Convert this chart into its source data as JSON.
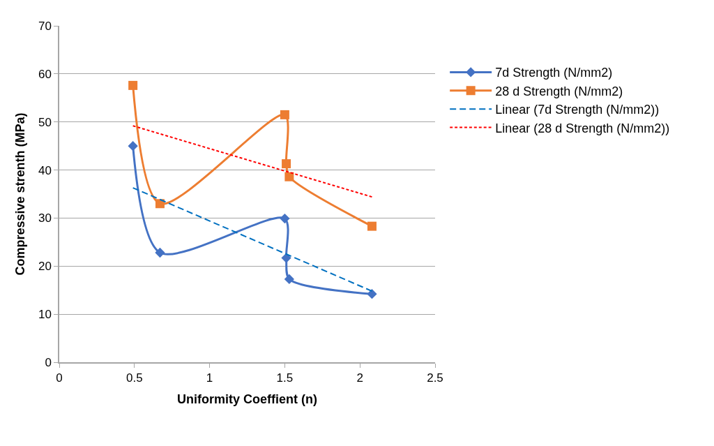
{
  "chart_data": {
    "type": "line",
    "xlabel": "Uniformity Coeffient (n)",
    "ylabel": "Compressive strenth (MPa)",
    "xlim": [
      0,
      2.5
    ],
    "xticks": [
      0,
      0.5,
      1,
      1.5,
      2,
      2.5
    ],
    "ylim": [
      0,
      70
    ],
    "yticks": [
      0,
      10,
      20,
      30,
      40,
      50,
      60,
      70
    ],
    "grid": "y",
    "legend": "right",
    "series": [
      {
        "name": "7d Strength (N/mm2)",
        "color": "#4472c4",
        "marker": "diamond",
        "line_style": "solid",
        "x": [
          0.49,
          0.67,
          1.5,
          1.51,
          1.53,
          2.08
        ],
        "values": [
          45.0,
          22.8,
          29.9,
          21.7,
          17.3,
          14.2
        ]
      },
      {
        "name": "28 d Strength (N/mm2)",
        "color": "#ed7d31",
        "marker": "square",
        "line_style": "solid",
        "x": [
          0.49,
          0.67,
          1.5,
          1.51,
          1.53,
          2.08
        ],
        "values": [
          57.6,
          33.0,
          51.5,
          41.3,
          38.6,
          28.3
        ]
      },
      {
        "name": "Linear (7d Strength (N/mm2))",
        "color": "#0070c0",
        "marker": "none",
        "line_style": "dashed",
        "x": [
          0.49,
          2.08
        ],
        "values": [
          36.3,
          14.8
        ]
      },
      {
        "name": "Linear (28 d Strength (N/mm2))",
        "color": "#ff0000",
        "marker": "none",
        "line_style": "dotted",
        "x": [
          0.49,
          2.08
        ],
        "values": [
          49.2,
          34.4
        ]
      }
    ]
  }
}
